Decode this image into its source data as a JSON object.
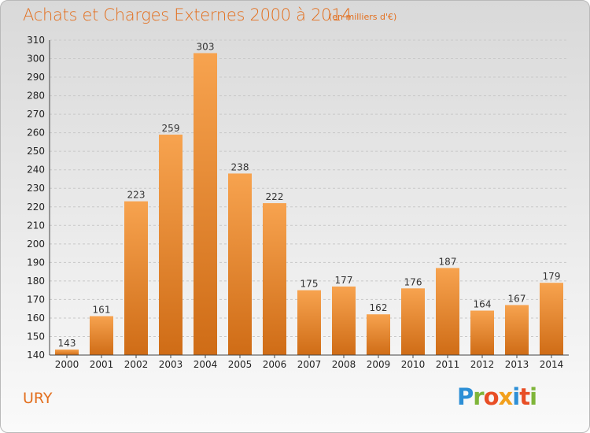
{
  "title": "Achats et Charges Externes 2000 à 2014",
  "subtitle": "(en milliers d'€)",
  "commune": "URY",
  "logo": {
    "letters": [
      "P",
      "r",
      "o",
      "x",
      "i",
      "t",
      "i"
    ],
    "colors": [
      "#2d8fd6",
      "#7fb539",
      "#e84e25",
      "#f2a01c",
      "#2d8fd6",
      "#e84e25",
      "#7fb539"
    ]
  },
  "colors": {
    "bar_top": "#f7a34f",
    "bar_bottom": "#cf6c16",
    "grid": "#c8c8c8",
    "accent": "#e36f1e"
  },
  "chart_data": {
    "type": "bar",
    "categories": [
      "2000",
      "2001",
      "2002",
      "2003",
      "2004",
      "2005",
      "2006",
      "2007",
      "2008",
      "2009",
      "2010",
      "2011",
      "2012",
      "2013",
      "2014"
    ],
    "values": [
      143,
      161,
      223,
      259,
      303,
      238,
      222,
      175,
      177,
      162,
      176,
      187,
      164,
      167,
      179
    ],
    "title": "Achats et Charges Externes 2000 à 2014",
    "ylim": [
      140,
      310
    ],
    "yticks": [
      140,
      150,
      160,
      170,
      180,
      190,
      200,
      210,
      220,
      230,
      240,
      250,
      260,
      270,
      280,
      290,
      300,
      310
    ],
    "grid": true,
    "data_labels": true
  }
}
